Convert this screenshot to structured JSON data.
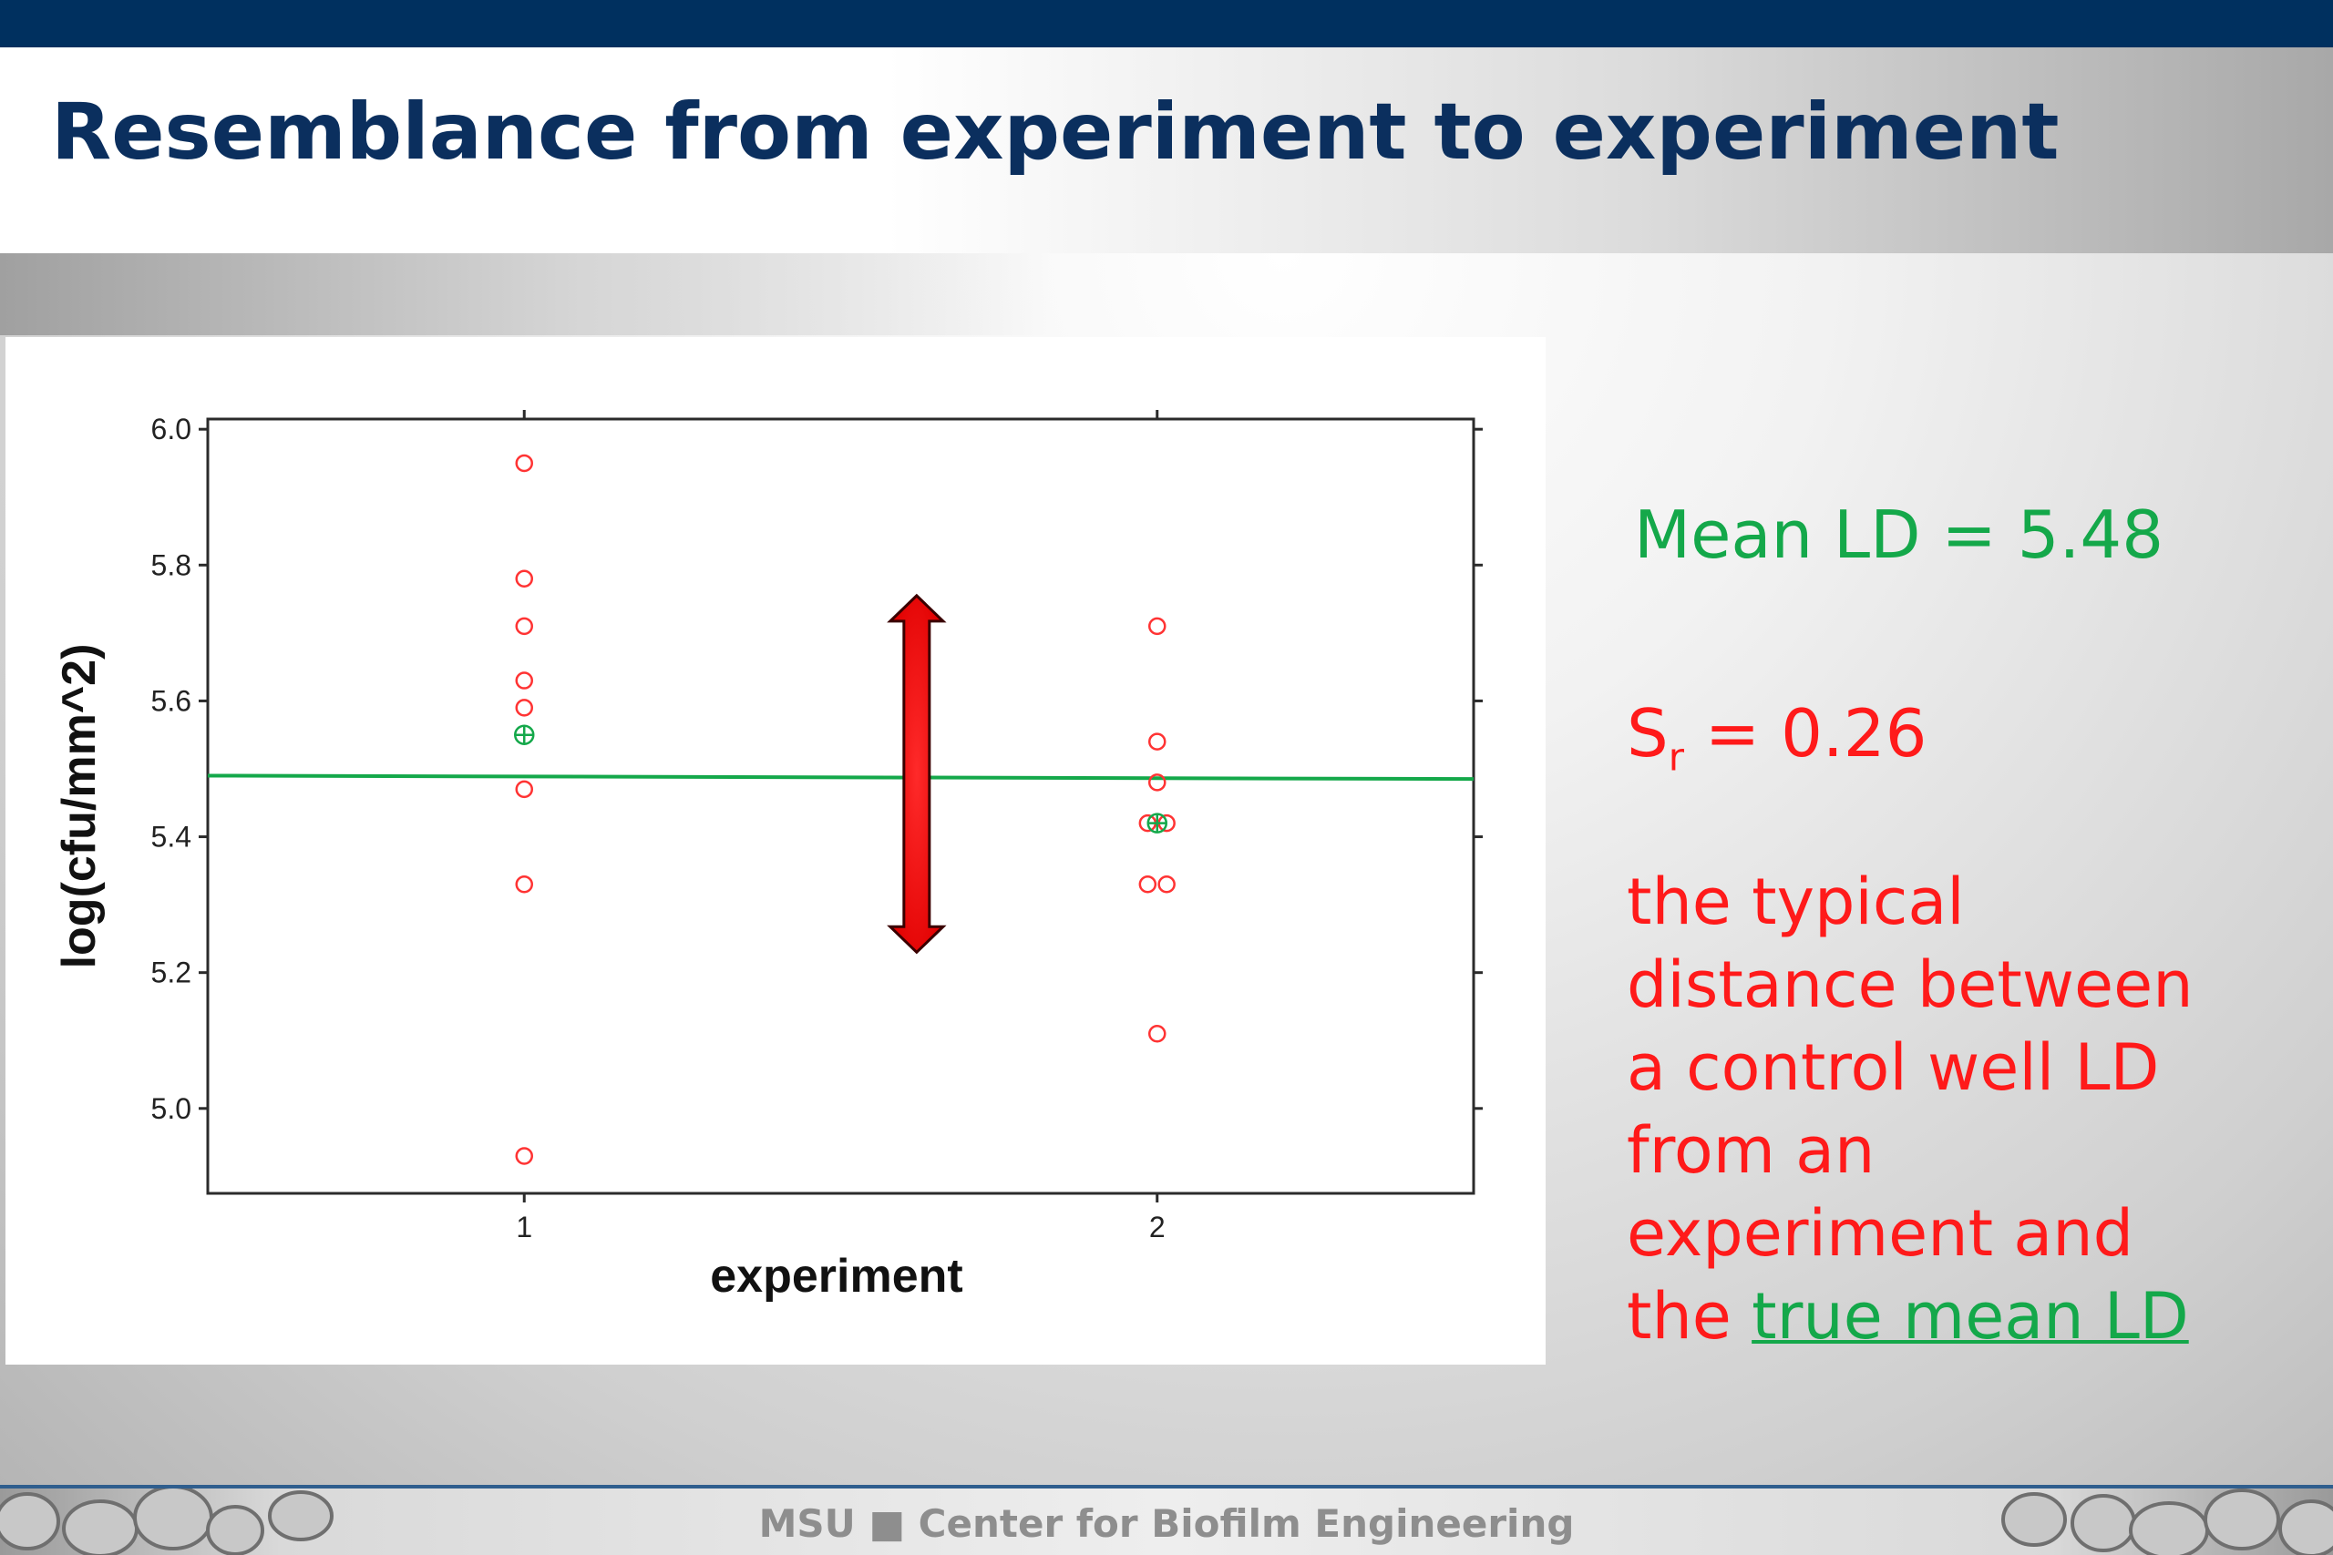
{
  "slide": {
    "title": "Resemblance from experiment to experiment",
    "footer_left": "MSU",
    "footer_sep": "■",
    "footer_right": "Center for Biofilm Engineering"
  },
  "annotations": {
    "mean_ld": "Mean LD = 5.48",
    "sr_symbol": "S",
    "sr_subscript": "r",
    "sr_value": " = 0.26",
    "desc_lines": [
      "the typical",
      "distance between",
      "a control well LD",
      "from an",
      "experiment and"
    ],
    "desc_last_prefix": "the ",
    "desc_last_link": "true mean LD"
  },
  "colors": {
    "topbar": "#00305f",
    "title": "#0b2f5e",
    "points": "#ff3333",
    "mean_line": "#14a84a",
    "arrow": "#ff0000",
    "annotation_red": "#ff1a1a",
    "annotation_green": "#14a84a"
  },
  "chart_data": {
    "type": "scatter",
    "xlabel": "experiment",
    "ylabel": "log(cfu/mm^2)",
    "xlim": [
      0.5,
      2.5
    ],
    "ylim": [
      4.875,
      6.015
    ],
    "x_ticks": [
      1,
      2
    ],
    "y_ticks": [
      5.0,
      5.2,
      5.4,
      5.6,
      5.8,
      6.0
    ],
    "grid": false,
    "series": [
      {
        "x": [
          1,
          1,
          1,
          1,
          1,
          1,
          1,
          1
        ],
        "y": [
          5.95,
          5.78,
          5.71,
          5.63,
          5.59,
          5.47,
          5.33,
          4.93
        ]
      },
      {
        "x": [
          2,
          2,
          2,
          1.985,
          2.015,
          1.985,
          2.015,
          2
        ],
        "y": [
          5.71,
          5.54,
          5.48,
          5.42,
          5.42,
          5.33,
          5.33,
          5.11
        ]
      }
    ],
    "experiment_means": [
      {
        "x": 1,
        "y": 5.55
      },
      {
        "x": 2,
        "y": 5.42
      }
    ],
    "reference_line": {
      "y_start": 5.49,
      "y_end": 5.485
    },
    "double_arrow": {
      "x": 1.62,
      "y_top": 5.755,
      "y_bottom": 5.23
    }
  }
}
